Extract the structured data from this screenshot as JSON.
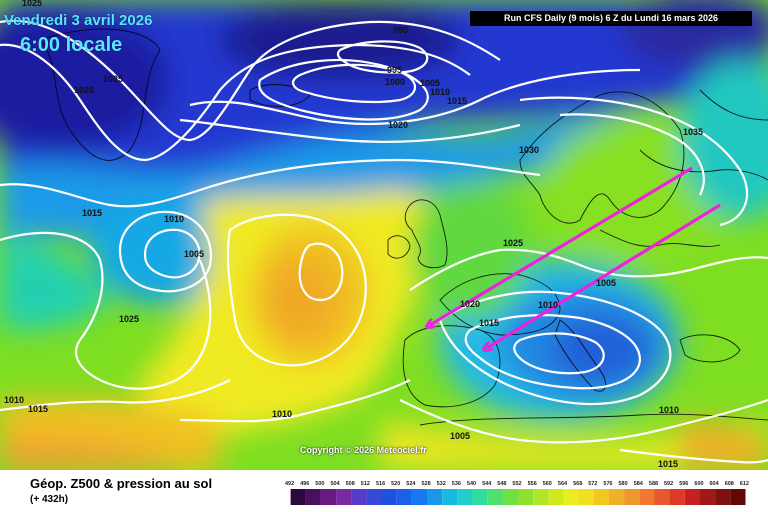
{
  "header": {
    "date_text": "Vendredi 3 avril 2026",
    "time_text": "6:00 locale",
    "run_text": "Run CFS Daily (9 mois) 6 Z du Lundi 16 mars 2026"
  },
  "copyright": "Copyright © 2026 Meteociel.fr",
  "legend": {
    "title": "Géop. Z500 & pression au sol",
    "subtitle": "(+ 432h)",
    "ticks": [
      "492",
      "496",
      "500",
      "504",
      "508",
      "512",
      "516",
      "520",
      "524",
      "528",
      "532",
      "536",
      "540",
      "544",
      "548",
      "552",
      "556",
      "560",
      "564",
      "568",
      "572",
      "576",
      "580",
      "584",
      "588",
      "592",
      "596",
      "600",
      "604",
      "608",
      "612"
    ]
  },
  "isobar_labels": [
    {
      "text": "1025"
    },
    {
      "text": "990"
    },
    {
      "text": "995"
    },
    {
      "text": "1000"
    },
    {
      "text": "1005"
    },
    {
      "text": "1010"
    },
    {
      "text": "1015"
    },
    {
      "text": "1025"
    },
    {
      "text": "1020"
    },
    {
      "text": "1020"
    },
    {
      "text": "1030"
    },
    {
      "text": "1035"
    },
    {
      "text": "1015"
    },
    {
      "text": "1010"
    },
    {
      "text": "1005"
    },
    {
      "text": "1025"
    },
    {
      "text": "1025"
    },
    {
      "text": "1020"
    },
    {
      "text": "1010"
    },
    {
      "text": "1005"
    },
    {
      "text": "1015"
    },
    {
      "text": "1010"
    },
    {
      "text": "1015"
    },
    {
      "text": "1010"
    },
    {
      "text": "1010"
    },
    {
      "text": "1005"
    },
    {
      "text": "1015"
    }
  ],
  "colors": {
    "isobar": "#ffffff",
    "arrow": "#ee22dd",
    "coast": "#000000"
  }
}
